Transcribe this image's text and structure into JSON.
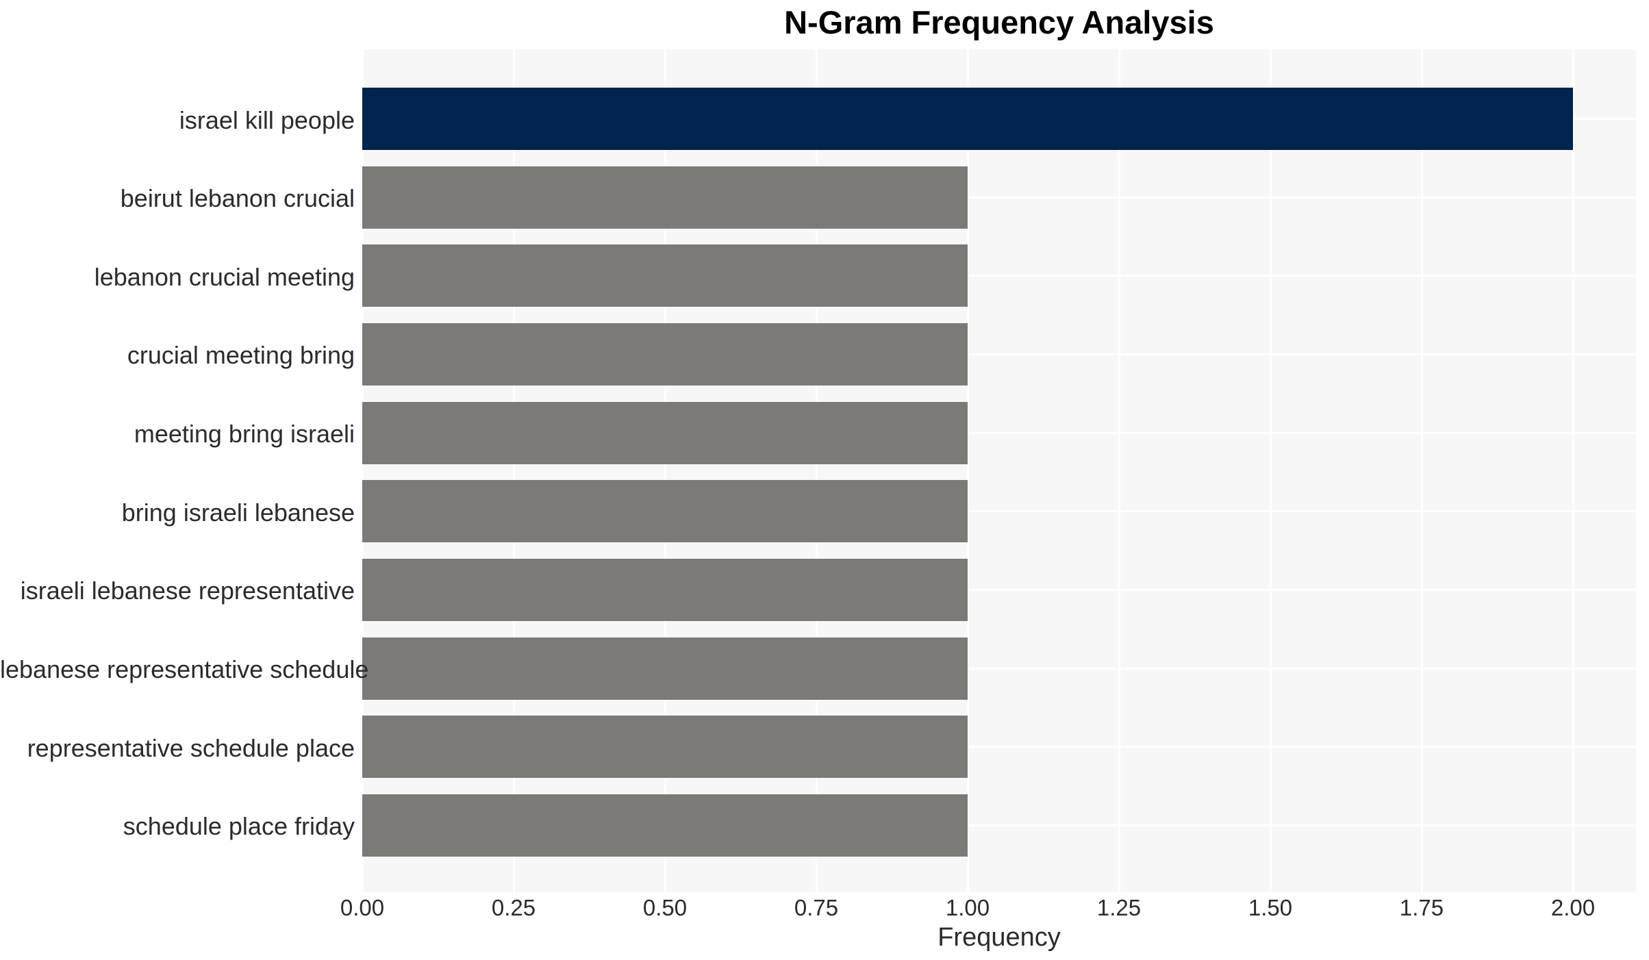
{
  "chart_data": {
    "type": "bar",
    "orientation": "horizontal",
    "title": "N-Gram Frequency Analysis",
    "xlabel": "Frequency",
    "ylabel": "",
    "categories": [
      "israel kill people",
      "beirut lebanon crucial",
      "lebanon crucial meeting",
      "crucial meeting bring",
      "meeting bring israeli",
      "bring israeli lebanese",
      "israeli lebanese representative",
      "lebanese representative schedule",
      "representative schedule place",
      "schedule place friday"
    ],
    "values": [
      2.0,
      1.0,
      1.0,
      1.0,
      1.0,
      1.0,
      1.0,
      1.0,
      1.0,
      1.0
    ],
    "bar_colors": [
      "#03234f",
      "#7b7a77",
      "#7b7a77",
      "#7b7a77",
      "#7b7a77",
      "#7b7a77",
      "#7b7a77",
      "#7b7a77",
      "#7b7a77",
      "#7b7a77"
    ],
    "x_ticks": [
      {
        "label": "0.00",
        "value": 0.0
      },
      {
        "label": "0.25",
        "value": 0.25
      },
      {
        "label": "0.50",
        "value": 0.5
      },
      {
        "label": "0.75",
        "value": 0.75
      },
      {
        "label": "1.00",
        "value": 1.0
      },
      {
        "label": "1.25",
        "value": 1.25
      },
      {
        "label": "1.50",
        "value": 1.5
      },
      {
        "label": "1.75",
        "value": 1.75
      },
      {
        "label": "2.00",
        "value": 2.0
      }
    ],
    "xlim": [
      0,
      2.1
    ],
    "grid": "on",
    "legend": "none",
    "colors": {
      "plot_background": "#f7f7f7",
      "page_background": "#ffffff",
      "grid_line": "#ffffff",
      "highlight_bar": "#03234f",
      "base_bar": "#7b7a77",
      "tick_text": "#2b2b2b",
      "title_text": "#000000"
    }
  }
}
